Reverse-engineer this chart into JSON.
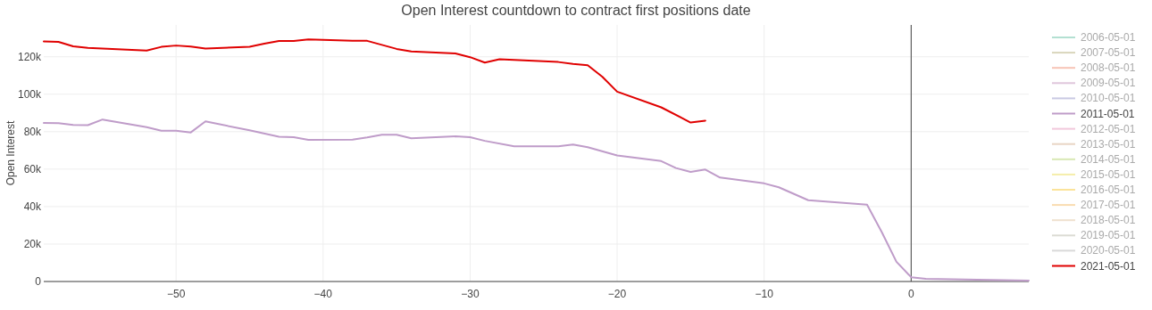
{
  "chart_data": {
    "type": "line",
    "title": "Open Interest countdown to contract first positions date",
    "ylabel": "Open Interest",
    "xlim": [
      -59,
      8
    ],
    "xticks": [
      -50,
      -40,
      -30,
      -20,
      -10,
      0
    ],
    "ylim": [
      0,
      137000
    ],
    "yticks": [
      {
        "value": 0,
        "label": "0"
      },
      {
        "value": 20000,
        "label": "20k"
      },
      {
        "value": 40000,
        "label": "40k"
      },
      {
        "value": 60000,
        "label": "60k"
      },
      {
        "value": 80000,
        "label": "80k"
      },
      {
        "value": 100000,
        "label": "100k"
      },
      {
        "value": 120000,
        "label": "120k"
      }
    ],
    "grid": true,
    "legend": "right",
    "ref_lines": [
      {
        "axis": "x",
        "value": 0,
        "color": "#444444"
      }
    ],
    "series": [
      {
        "name": "2006-05-01",
        "color": "#b3e0d2"
      },
      {
        "name": "2007-05-01",
        "color": "#d9d6bc"
      },
      {
        "name": "2008-05-01",
        "color": "#f7c4b5"
      },
      {
        "name": "2009-05-01",
        "color": "#e0c6dc"
      },
      {
        "name": "2010-05-01",
        "color": "#c9c9e3"
      },
      {
        "name": "2011-05-01",
        "color": "#bf9cc9",
        "x": [
          -59,
          -58,
          -57,
          -56,
          -55,
          -52,
          -51,
          -50,
          -49,
          -48,
          -45,
          -43,
          -42,
          -41,
          -38,
          -37,
          -36,
          -35,
          -34,
          -31,
          -30,
          -29,
          -27,
          -24,
          -23,
          -22,
          -20,
          -17,
          -16,
          -15,
          -14,
          -13,
          -10,
          -9,
          -7,
          -3,
          -2,
          -1,
          0,
          1,
          8
        ],
        "values": [
          84700,
          84500,
          83600,
          83500,
          86500,
          82400,
          80500,
          80500,
          79600,
          85500,
          80700,
          77300,
          77100,
          75600,
          75800,
          76900,
          78400,
          78400,
          76500,
          77500,
          77100,
          75100,
          72200,
          72200,
          73100,
          71700,
          67300,
          64300,
          60600,
          58500,
          59800,
          55500,
          52400,
          50300,
          43400,
          41000,
          26400,
          10500,
          2300,
          1400,
          500
        ]
      },
      {
        "name": "2012-05-01",
        "color": "#f2c8dc"
      },
      {
        "name": "2013-05-01",
        "color": "#e8d5c4"
      },
      {
        "name": "2014-05-01",
        "color": "#d8e8b4"
      },
      {
        "name": "2015-05-01",
        "color": "#f5eeaa"
      },
      {
        "name": "2016-05-01",
        "color": "#fbe39a"
      },
      {
        "name": "2017-05-01",
        "color": "#f9dcb0"
      },
      {
        "name": "2018-05-01",
        "color": "#efe1cf"
      },
      {
        "name": "2019-05-01",
        "color": "#dcdcd4"
      },
      {
        "name": "2020-05-01",
        "color": "#d9d9d9"
      },
      {
        "name": "2021-05-01",
        "color": "#e00000",
        "x": [
          -59,
          -58,
          -57,
          -56,
          -52,
          -51,
          -50,
          -49,
          -48,
          -45,
          -44,
          -43,
          -42,
          -41,
          -38,
          -37,
          -35,
          -34,
          -31,
          -30,
          -29,
          -28,
          -27,
          -24,
          -23,
          -22,
          -21,
          -20,
          -17,
          -15,
          -14
        ],
        "values": [
          128200,
          128000,
          125600,
          124700,
          123300,
          125300,
          126000,
          125500,
          124400,
          125300,
          127000,
          128400,
          128400,
          129300,
          128500,
          128500,
          124200,
          122900,
          121800,
          119800,
          116900,
          118700,
          118300,
          117200,
          116200,
          115500,
          109300,
          101400,
          93000,
          84900,
          85900
        ]
      }
    ]
  }
}
